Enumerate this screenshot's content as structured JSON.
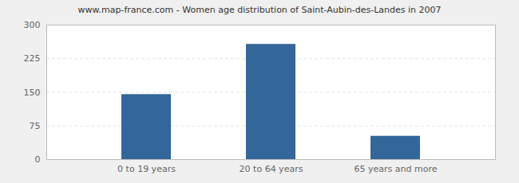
{
  "chart_data": {
    "type": "bar",
    "title": "www.map-france.com - Women age distribution of Saint-Aubin-des-Landes in 2007",
    "categories": [
      "0 to 19 years",
      "20 to 64 years",
      "65 years and more"
    ],
    "values": [
      145,
      257,
      52
    ],
    "color": "#336699",
    "ylim": [
      0,
      300
    ],
    "yticks": [
      0,
      75,
      150,
      225,
      300
    ],
    "grid": true
  }
}
